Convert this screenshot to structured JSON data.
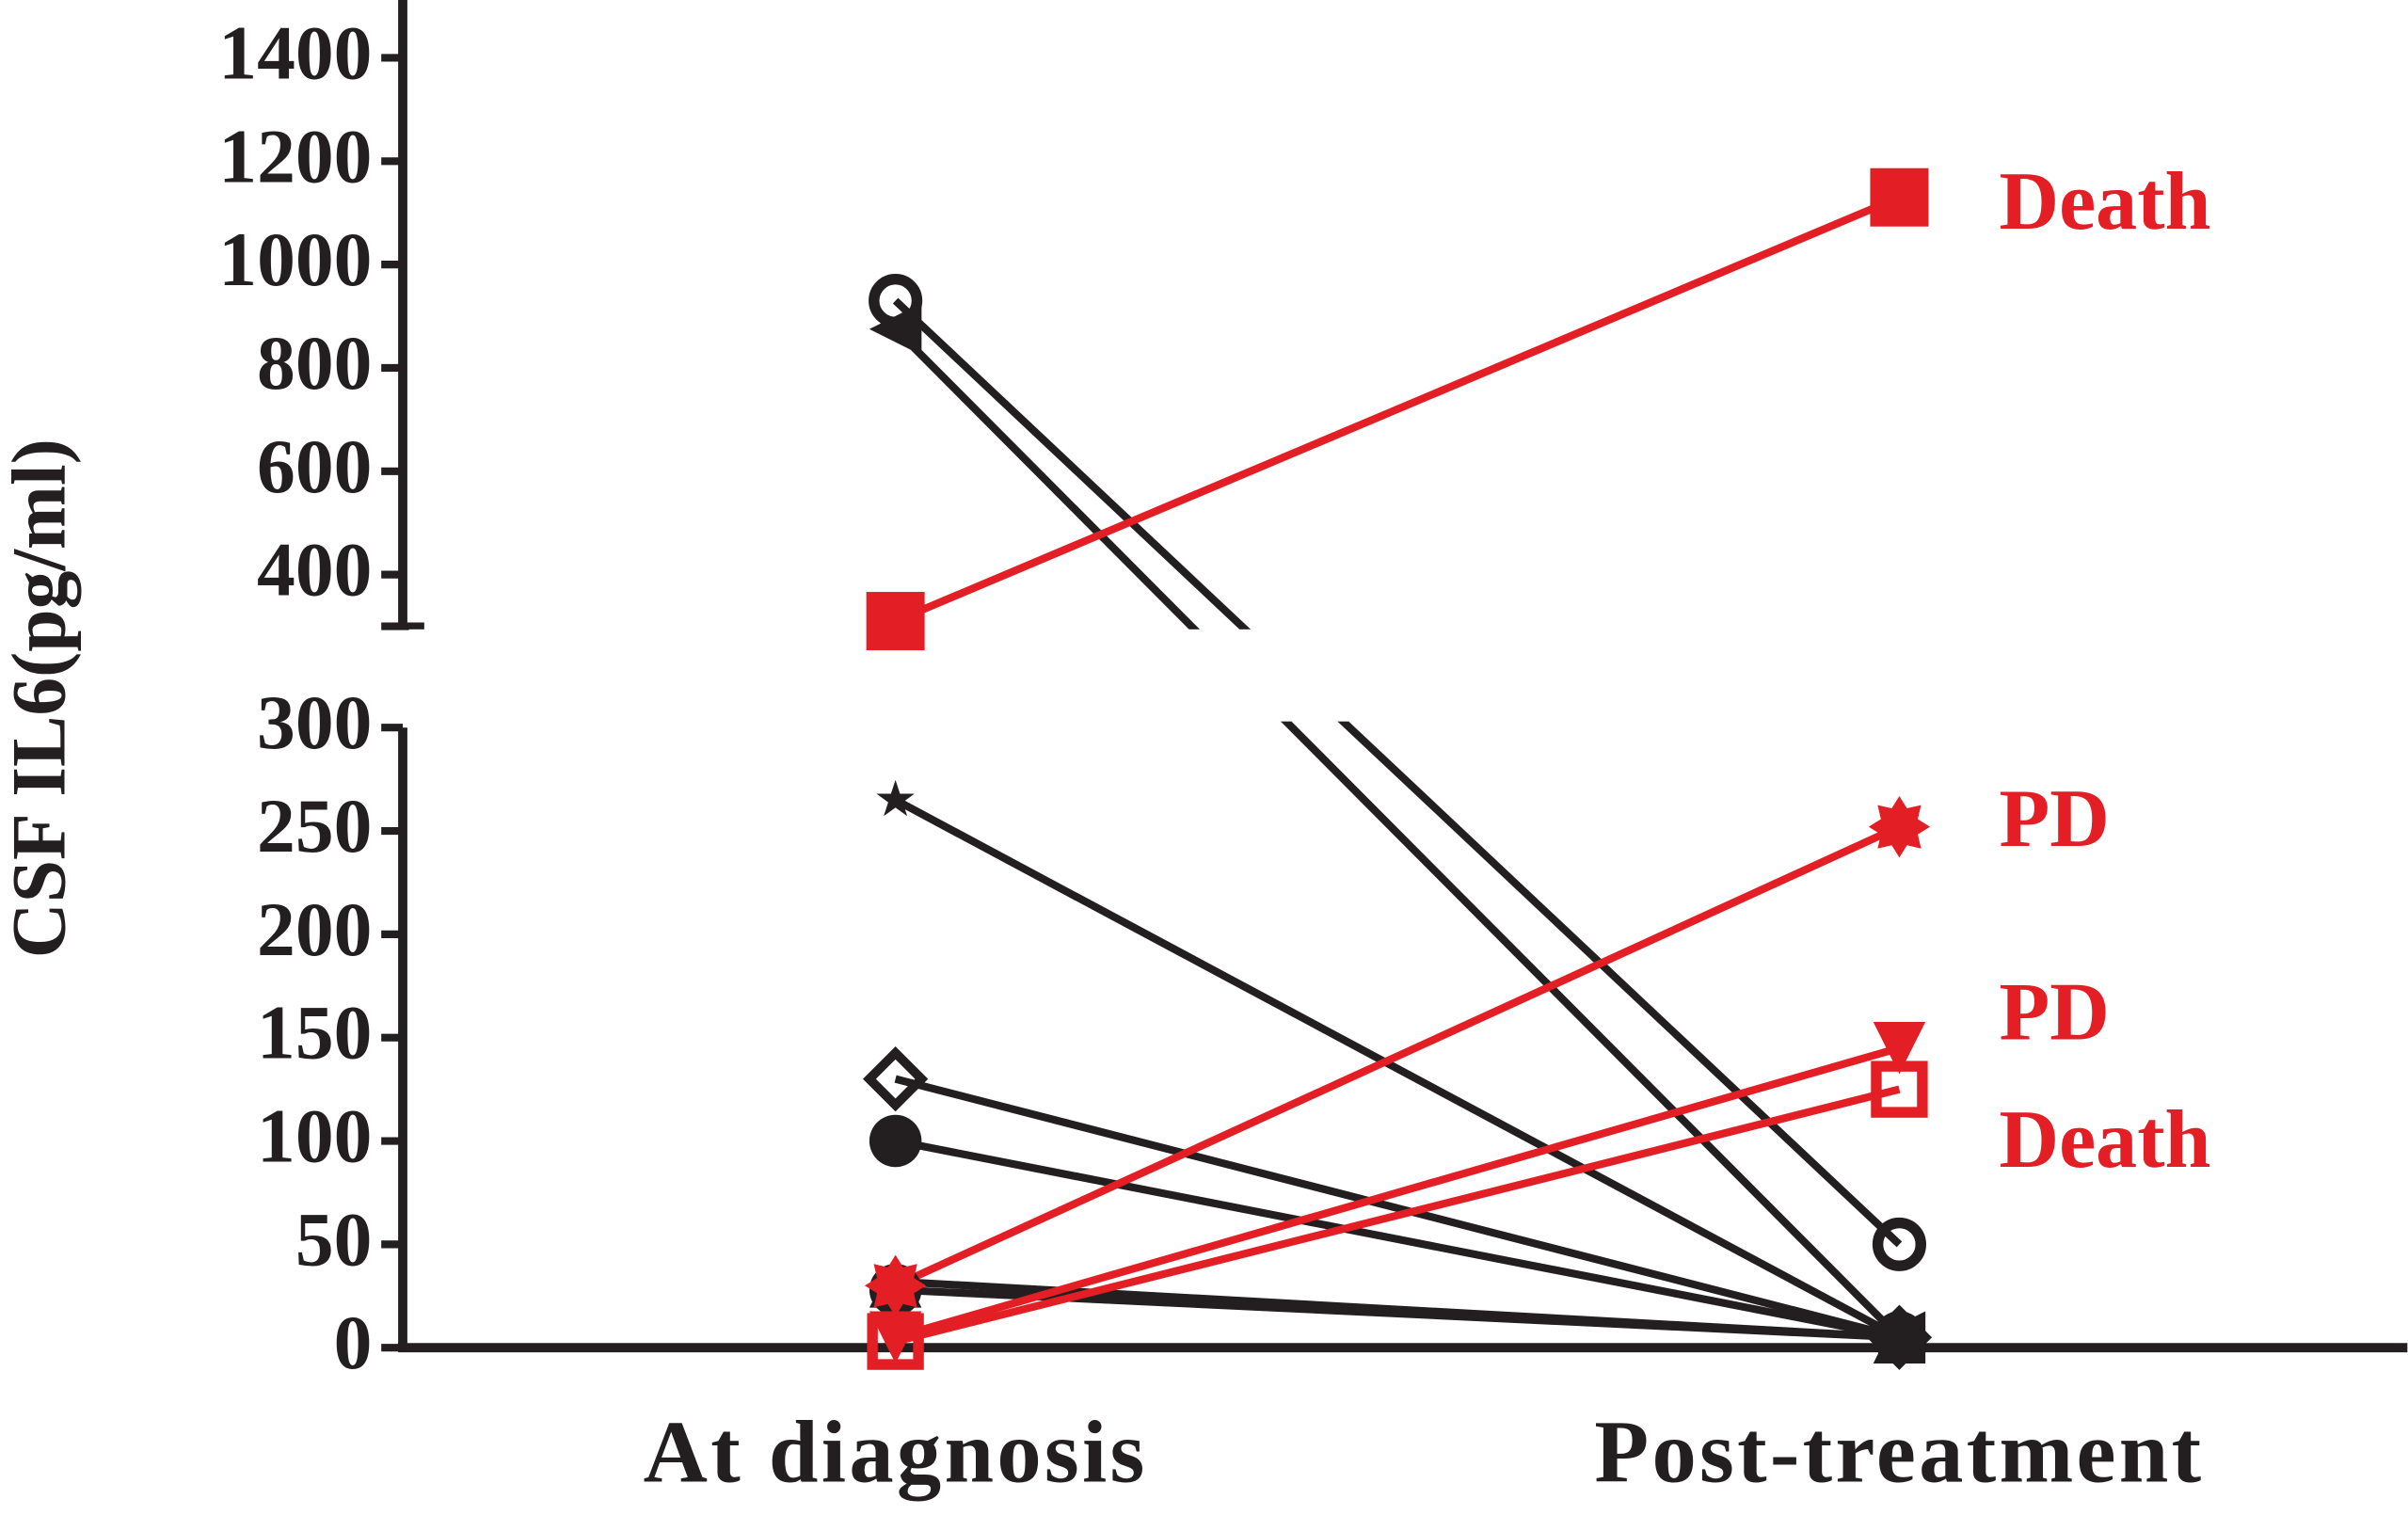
{
  "chart_data": {
    "type": "paired-line",
    "y_label": "CSF IL6(pg/ml)",
    "categories": [
      "At diagnosis",
      "Post-treatment"
    ],
    "ylim": [
      0,
      300
    ],
    "yticks": [
      0,
      50,
      100,
      150,
      200,
      250,
      300
    ],
    "ylim_upper": [
      300,
      1500
    ],
    "yticks_upper": [
      400,
      600,
      800,
      1000,
      1200,
      1400
    ],
    "axis_break": true,
    "series": [
      {
        "color": "#231f20",
        "marker": "circle-open",
        "values": [
          930,
          50
        ]
      },
      {
        "color": "#231f20",
        "marker": "triangle-left",
        "values": [
          875,
          5
        ]
      },
      {
        "color": "#231f20",
        "marker": "star",
        "values": [
          265,
          5
        ]
      },
      {
        "color": "#231f20",
        "marker": "diamond-open",
        "values": [
          130,
          5
        ]
      },
      {
        "color": "#231f20",
        "marker": "circle",
        "values": [
          100,
          5
        ]
      },
      {
        "color": "#231f20",
        "marker": "triangle",
        "values": [
          32,
          5
        ]
      },
      {
        "color": "#231f20",
        "marker": "circle",
        "values": [
          28,
          5
        ]
      },
      {
        "color": "#e31e24",
        "marker": "square",
        "values": [
          310,
          1130
        ],
        "annotation": "Death"
      },
      {
        "color": "#e31e24",
        "marker": "asterisk",
        "values": [
          30,
          252
        ],
        "annotation": "PD"
      },
      {
        "color": "#e31e24",
        "marker": "triangle-down",
        "values": [
          5,
          145
        ],
        "annotation": "PD"
      },
      {
        "color": "#e31e24",
        "marker": "square-open",
        "values": [
          3,
          125
        ],
        "annotation": "Death"
      }
    ]
  }
}
